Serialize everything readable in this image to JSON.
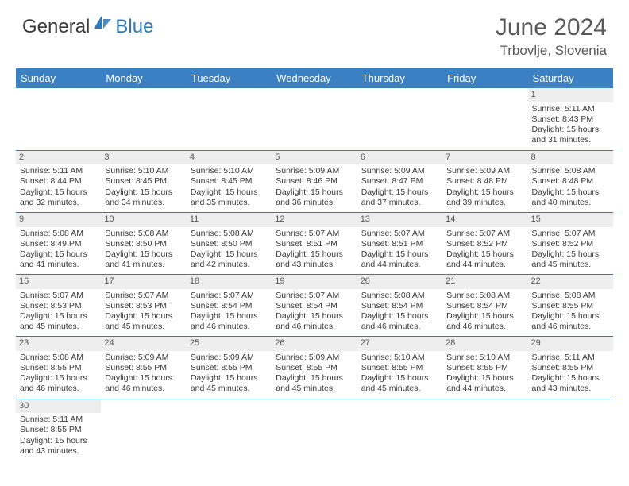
{
  "brand": {
    "part1": "General",
    "part2": "Blue",
    "color1": "#3a3a3a",
    "color2": "#2e79b8"
  },
  "title": "June 2024",
  "location": "Trbovlje, Slovenia",
  "colors": {
    "header_bg": "#3a80c3",
    "header_fg": "#ffffff",
    "daynum_bg": "#eeeeee",
    "border": "#2e79b8",
    "text": "#3a3a3a",
    "title": "#595959"
  },
  "weekdays": [
    "Sunday",
    "Monday",
    "Tuesday",
    "Wednesday",
    "Thursday",
    "Friday",
    "Saturday"
  ],
  "first_weekday_index": 6,
  "days": [
    {
      "n": 1,
      "sunrise": "5:11 AM",
      "sunset": "8:43 PM",
      "daylight": "15 hours and 31 minutes."
    },
    {
      "n": 2,
      "sunrise": "5:11 AM",
      "sunset": "8:44 PM",
      "daylight": "15 hours and 32 minutes."
    },
    {
      "n": 3,
      "sunrise": "5:10 AM",
      "sunset": "8:45 PM",
      "daylight": "15 hours and 34 minutes."
    },
    {
      "n": 4,
      "sunrise": "5:10 AM",
      "sunset": "8:45 PM",
      "daylight": "15 hours and 35 minutes."
    },
    {
      "n": 5,
      "sunrise": "5:09 AM",
      "sunset": "8:46 PM",
      "daylight": "15 hours and 36 minutes."
    },
    {
      "n": 6,
      "sunrise": "5:09 AM",
      "sunset": "8:47 PM",
      "daylight": "15 hours and 37 minutes."
    },
    {
      "n": 7,
      "sunrise": "5:09 AM",
      "sunset": "8:48 PM",
      "daylight": "15 hours and 39 minutes."
    },
    {
      "n": 8,
      "sunrise": "5:08 AM",
      "sunset": "8:48 PM",
      "daylight": "15 hours and 40 minutes."
    },
    {
      "n": 9,
      "sunrise": "5:08 AM",
      "sunset": "8:49 PM",
      "daylight": "15 hours and 41 minutes."
    },
    {
      "n": 10,
      "sunrise": "5:08 AM",
      "sunset": "8:50 PM",
      "daylight": "15 hours and 41 minutes."
    },
    {
      "n": 11,
      "sunrise": "5:08 AM",
      "sunset": "8:50 PM",
      "daylight": "15 hours and 42 minutes."
    },
    {
      "n": 12,
      "sunrise": "5:07 AM",
      "sunset": "8:51 PM",
      "daylight": "15 hours and 43 minutes."
    },
    {
      "n": 13,
      "sunrise": "5:07 AM",
      "sunset": "8:51 PM",
      "daylight": "15 hours and 44 minutes."
    },
    {
      "n": 14,
      "sunrise": "5:07 AM",
      "sunset": "8:52 PM",
      "daylight": "15 hours and 44 minutes."
    },
    {
      "n": 15,
      "sunrise": "5:07 AM",
      "sunset": "8:52 PM",
      "daylight": "15 hours and 45 minutes."
    },
    {
      "n": 16,
      "sunrise": "5:07 AM",
      "sunset": "8:53 PM",
      "daylight": "15 hours and 45 minutes."
    },
    {
      "n": 17,
      "sunrise": "5:07 AM",
      "sunset": "8:53 PM",
      "daylight": "15 hours and 45 minutes."
    },
    {
      "n": 18,
      "sunrise": "5:07 AM",
      "sunset": "8:54 PM",
      "daylight": "15 hours and 46 minutes."
    },
    {
      "n": 19,
      "sunrise": "5:07 AM",
      "sunset": "8:54 PM",
      "daylight": "15 hours and 46 minutes."
    },
    {
      "n": 20,
      "sunrise": "5:08 AM",
      "sunset": "8:54 PM",
      "daylight": "15 hours and 46 minutes."
    },
    {
      "n": 21,
      "sunrise": "5:08 AM",
      "sunset": "8:54 PM",
      "daylight": "15 hours and 46 minutes."
    },
    {
      "n": 22,
      "sunrise": "5:08 AM",
      "sunset": "8:55 PM",
      "daylight": "15 hours and 46 minutes."
    },
    {
      "n": 23,
      "sunrise": "5:08 AM",
      "sunset": "8:55 PM",
      "daylight": "15 hours and 46 minutes."
    },
    {
      "n": 24,
      "sunrise": "5:09 AM",
      "sunset": "8:55 PM",
      "daylight": "15 hours and 46 minutes."
    },
    {
      "n": 25,
      "sunrise": "5:09 AM",
      "sunset": "8:55 PM",
      "daylight": "15 hours and 45 minutes."
    },
    {
      "n": 26,
      "sunrise": "5:09 AM",
      "sunset": "8:55 PM",
      "daylight": "15 hours and 45 minutes."
    },
    {
      "n": 27,
      "sunrise": "5:10 AM",
      "sunset": "8:55 PM",
      "daylight": "15 hours and 45 minutes."
    },
    {
      "n": 28,
      "sunrise": "5:10 AM",
      "sunset": "8:55 PM",
      "daylight": "15 hours and 44 minutes."
    },
    {
      "n": 29,
      "sunrise": "5:11 AM",
      "sunset": "8:55 PM",
      "daylight": "15 hours and 43 minutes."
    },
    {
      "n": 30,
      "sunrise": "5:11 AM",
      "sunset": "8:55 PM",
      "daylight": "15 hours and 43 minutes."
    }
  ],
  "labels": {
    "sunrise": "Sunrise:",
    "sunset": "Sunset:",
    "daylight": "Daylight:"
  }
}
